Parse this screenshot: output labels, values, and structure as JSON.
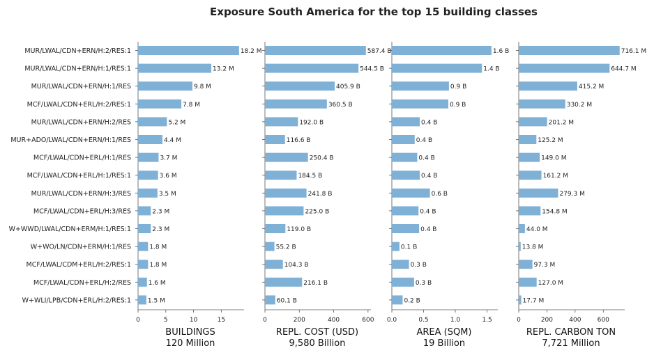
{
  "chart_data": {
    "type": "bar",
    "orientation": "horizontal",
    "title": "Exposure South America for the top 15 building classes",
    "categories": [
      "MUR/LWAL/CDN+ERN/H:2/RES:1",
      "MUR/LWAL/CDN+ERN/H:1/RES:1",
      "MUR/LWAL/CDN+ERN/H:1/RES",
      "MCF/LWAL/CDN+ERL/H:2/RES:1",
      "MUR/LWAL/CDN+ERN/H:2/RES",
      "MUR+ADO/LWAL/CDN+ERN/H:1/RES",
      "MCF/LWAL/CDN+ERL/H:1/RES",
      "MCF/LWAL/CDN+ERL/H:1/RES:1",
      "MUR/LWAL/CDN+ERN/H:3/RES",
      "MCF/LWAL/CDN+ERL/H:3/RES",
      "W+WWD/LWAL/CDN+ERM/H:1/RES:1",
      "W+WO/LN/CDN+ERM/H:1/RES",
      "MCF/LWAL/CDM+ERL/H:2/RES:1",
      "MCF/LWAL/CDN+ERL/H:2/RES",
      "W+WLI/LPB/CDN+ERL/H:2/RES:1"
    ],
    "bar_color": "#7fb0d5",
    "grid": false,
    "panels": [
      {
        "xlabel": "BUILDINGS",
        "total": "120 Million",
        "xlim": [
          0,
          19.1
        ],
        "ticks": [
          0,
          5,
          10,
          15
        ],
        "tick_labels": [
          "0",
          "5",
          "10",
          "15"
        ],
        "values": [
          18.2,
          13.2,
          9.8,
          7.8,
          5.2,
          4.4,
          3.7,
          3.6,
          3.5,
          2.3,
          2.3,
          1.8,
          1.8,
          1.6,
          1.5
        ],
        "labels": [
          "18.2 M",
          "13.2 M",
          "9.8 M",
          "7.8 M",
          "5.2 M",
          "4.4 M",
          "3.7 M",
          "3.6 M",
          "3.5 M",
          "2.3 M",
          "2.3 M",
          "1.8 M",
          "1.8 M",
          "1.6 M",
          "1.5 M"
        ]
      },
      {
        "xlabel": "REPL. COST (USD)",
        "total": "9,580 Billion",
        "xlim": [
          0,
          616.8
        ],
        "ticks": [
          0,
          200,
          400,
          600
        ],
        "tick_labels": [
          "0",
          "200",
          "400",
          "600"
        ],
        "values": [
          587.4,
          544.5,
          405.9,
          360.5,
          192.0,
          116.6,
          250.4,
          184.5,
          241.8,
          225.0,
          119.0,
          55.2,
          104.3,
          216.1,
          60.1
        ],
        "labels": [
          "587.4 B",
          "544.5 B",
          "405.9 B",
          "360.5 B",
          "192.0 B",
          "116.6 B",
          "250.4 B",
          "184.5 B",
          "241.8 B",
          "225.0 B",
          "119.0 B",
          "55.2 B",
          "104.3 B",
          "216.1 B",
          "60.1 B"
        ]
      },
      {
        "xlabel": "AREA (SQM)",
        "total": "19 Billion",
        "xlim": [
          0,
          1.67
        ],
        "ticks": [
          0,
          0.5,
          1.0,
          1.5
        ],
        "tick_labels": [
          "0.0",
          "0.5",
          "1.0",
          "1.5"
        ],
        "values": [
          1.57,
          1.42,
          0.9,
          0.89,
          0.44,
          0.36,
          0.4,
          0.44,
          0.6,
          0.42,
          0.43,
          0.12,
          0.27,
          0.35,
          0.17
        ],
        "labels": [
          "1.6 B",
          "1.4 B",
          "0.9 B",
          "0.9 B",
          "0.4 B",
          "0.4 B",
          "0.4 B",
          "0.4 B",
          "0.6 B",
          "0.4 B",
          "0.4 B",
          "0.1 B",
          "0.3 B",
          "0.3 B",
          "0.2 B"
        ]
      },
      {
        "xlabel": "REPL. CARBON TON",
        "total": "7,721 Million",
        "xlim": [
          0,
          752
        ],
        "ticks": [
          0,
          200,
          400,
          600
        ],
        "tick_labels": [
          "0",
          "200",
          "400",
          "600"
        ],
        "values": [
          716.1,
          644.7,
          415.2,
          330.2,
          201.2,
          125.2,
          149.0,
          161.2,
          279.3,
          154.8,
          44.0,
          13.8,
          97.3,
          127.0,
          17.7
        ],
        "labels": [
          "716.1 M",
          "644.7 M",
          "415.2 M",
          "330.2 M",
          "201.2 M",
          "125.2 M",
          "149.0 M",
          "161.2 M",
          "279.3 M",
          "154.8 M",
          "44.0 M",
          "13.8 M",
          "97.3 M",
          "127.0 M",
          "17.7 M"
        ]
      }
    ]
  }
}
